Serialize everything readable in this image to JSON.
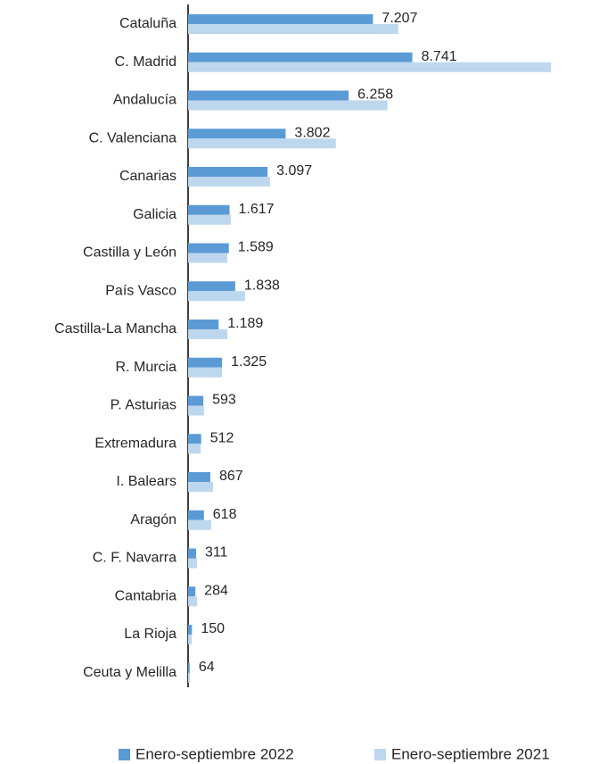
{
  "chart_data": {
    "type": "hbar",
    "categories": [
      "Cataluña",
      "C. Madrid",
      "Andalucía",
      "C. Valenciana",
      "Canarias",
      "Galicia",
      "Castilla y León",
      "País Vasco",
      "Castilla-La Mancha",
      "R. Murcia",
      "P. Asturias",
      "Extremadura",
      "I. Balears",
      "Aragón",
      "C. F. Navarra",
      "Cantabria",
      "La Rioja",
      "Ceuta y Melilla"
    ],
    "series": [
      {
        "name": "Enero-septiembre 2022",
        "color": "#5b9bd5",
        "values": [
          7207,
          8741,
          6258,
          3802,
          3097,
          1617,
          1589,
          1838,
          1189,
          1325,
          593,
          512,
          867,
          618,
          311,
          284,
          150,
          64
        ],
        "value_labels": [
          "7.207",
          "8.741",
          "6.258",
          "3.802",
          "3.097",
          "1.617",
          "1.589",
          "1.838",
          "1.189",
          "1.325",
          "593",
          "512",
          "867",
          "618",
          "311",
          "284",
          "150",
          "64"
        ]
      },
      {
        "name": "Enero-septiembre 2021",
        "color": "#bdd7ee",
        "values": [
          8190,
          14150,
          7770,
          5760,
          3190,
          1670,
          1530,
          2220,
          1530,
          1320,
          620,
          490,
          970,
          900,
          350,
          350,
          140,
          70
        ]
      }
    ],
    "xlim": [
      0,
      15600
    ],
    "legend": "bottom"
  }
}
